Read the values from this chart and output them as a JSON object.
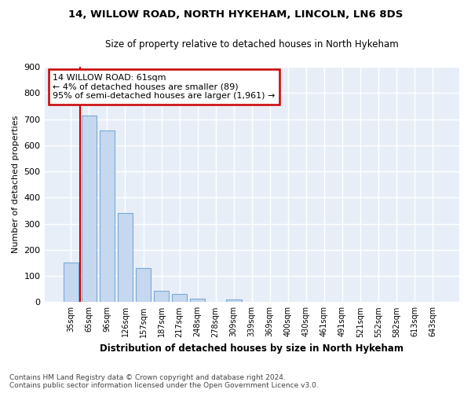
{
  "title": "14, WILLOW ROAD, NORTH HYKEHAM, LINCOLN, LN6 8DS",
  "subtitle": "Size of property relative to detached houses in North Hykeham",
  "xlabel": "Distribution of detached houses by size in North Hykeham",
  "ylabel": "Number of detached properties",
  "footer_line1": "Contains HM Land Registry data © Crown copyright and database right 2024.",
  "footer_line2": "Contains public sector information licensed under the Open Government Licence v3.0.",
  "categories": [
    "35sqm",
    "65sqm",
    "96sqm",
    "126sqm",
    "157sqm",
    "187sqm",
    "217sqm",
    "248sqm",
    "278sqm",
    "309sqm",
    "339sqm",
    "369sqm",
    "400sqm",
    "430sqm",
    "461sqm",
    "491sqm",
    "521sqm",
    "552sqm",
    "582sqm",
    "613sqm",
    "643sqm"
  ],
  "values": [
    150,
    715,
    655,
    340,
    130,
    42,
    32,
    13,
    0,
    10,
    0,
    0,
    0,
    0,
    0,
    0,
    0,
    0,
    0,
    0,
    0
  ],
  "bar_color": "#c5d8f0",
  "bar_edge_color": "#7aaad4",
  "fig_background_color": "#ffffff",
  "ax_background_color": "#e8eef8",
  "grid_color": "#ffffff",
  "ylim": [
    0,
    900
  ],
  "yticks": [
    0,
    100,
    200,
    300,
    400,
    500,
    600,
    700,
    800,
    900
  ],
  "annotation_line1": "14 WILLOW ROAD: 61sqm",
  "annotation_line2": "← 4% of detached houses are smaller (89)",
  "annotation_line3": "95% of semi-detached houses are larger (1,961) →",
  "annotation_box_color": "#ffffff",
  "annotation_box_edge": "#cc0000",
  "vline_color": "#cc0000",
  "vline_x_index": 0.5
}
